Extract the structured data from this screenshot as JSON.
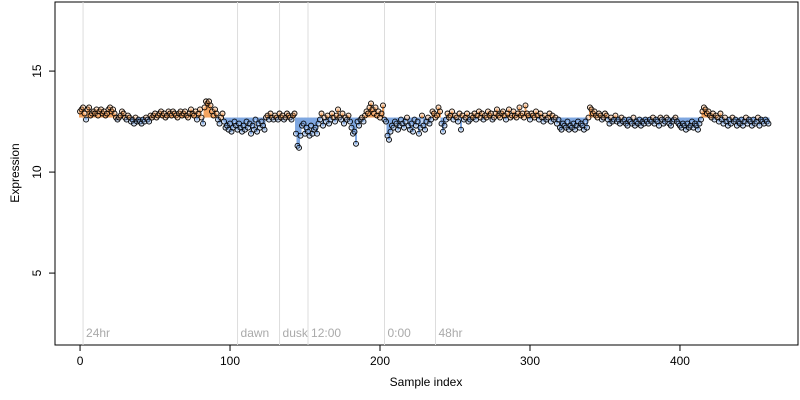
{
  "chart_data": {
    "type": "scatter",
    "x_label": "Sample index",
    "y_label": "Expression",
    "xlim": [
      -16.7,
      478.7
    ],
    "ylim": [
      1.44,
      18.42
    ],
    "xticks": [
      0,
      100,
      200,
      300,
      400
    ],
    "yticks": [
      5,
      10,
      15
    ],
    "baseline": 12.7,
    "above_color": "#f4a460",
    "below_color": "#7fa7e0",
    "point_color": "#000000",
    "annotation_color": "#dddddd",
    "annotations": [
      {
        "x": 2,
        "label": "24hr"
      },
      {
        "x": 105,
        "label": "dawn"
      },
      {
        "x": 133,
        "label": "dusk"
      },
      {
        "x": 152,
        "label": "12:00"
      },
      {
        "x": 203,
        "label": "0:00"
      },
      {
        "x": 237,
        "label": "48hr"
      }
    ],
    "values": [
      13.0,
      13.1,
      13.2,
      12.9,
      12.6,
      13.1,
      13.2,
      12.8,
      12.9,
      13.0,
      12.9,
      13.1,
      12.8,
      13.0,
      13.1,
      12.9,
      13.0,
      12.8,
      12.9,
      13.1,
      13.2,
      13.0,
      13.1,
      12.9,
      12.7,
      12.6,
      12.7,
      12.8,
      13.0,
      12.9,
      12.7,
      12.6,
      12.8,
      12.7,
      12.5,
      12.6,
      12.4,
      12.7,
      12.5,
      12.6,
      12.5,
      12.4,
      12.6,
      12.5,
      12.7,
      12.6,
      12.5,
      12.8,
      12.7,
      12.8,
      12.9,
      12.7,
      12.8,
      12.9,
      13.0,
      12.8,
      12.9,
      12.7,
      12.8,
      13.0,
      12.9,
      12.8,
      13.0,
      12.9,
      12.8,
      12.7,
      12.9,
      13.0,
      12.8,
      12.9,
      13.0,
      12.8,
      12.7,
      12.9,
      13.1,
      12.9,
      12.8,
      13.0,
      12.6,
      12.9,
      13.1,
      12.7,
      12.4,
      13.2,
      13.5,
      13.4,
      13.5,
      13.3,
      13.0,
      12.8,
      13.1,
      12.9,
      12.6,
      12.4,
      12.7,
      12.9,
      12.5,
      12.2,
      12.3,
      12.1,
      12.4,
      12.0,
      12.2,
      12.5,
      12.3,
      12.1,
      12.4,
      12.2,
      12.0,
      12.3,
      12.1,
      12.5,
      12.2,
      12.4,
      11.9,
      12.3,
      12.1,
      12.6,
      12.0,
      12.4,
      12.2,
      12.5,
      12.3,
      12.1,
      12.7,
      12.8,
      12.6,
      12.9,
      12.7,
      12.6,
      12.8,
      12.7,
      12.6,
      12.9,
      12.7,
      12.8,
      12.6,
      12.7,
      12.9,
      12.8,
      12.7,
      12.6,
      12.8,
      12.9,
      11.9,
      11.3,
      11.2,
      11.8,
      12.3,
      12.4,
      11.9,
      12.2,
      12.0,
      11.8,
      12.3,
      11.9,
      12.1,
      12.2,
      11.9,
      12.4,
      12.6,
      12.9,
      12.3,
      12.7,
      12.5,
      12.8,
      12.4,
      12.6,
      12.9,
      12.7,
      12.5,
      12.8,
      13.1,
      12.7,
      12.6,
      12.9,
      12.4,
      12.7,
      12.6,
      12.8,
      12.5,
      12.2,
      11.9,
      12.0,
      11.4,
      12.5,
      12.3,
      12.6,
      12.7,
      12.5,
      12.8,
      13.0,
      12.9,
      13.2,
      13.4,
      13.1,
      12.9,
      13.2,
      12.8,
      13.0,
      12.7,
      12.9,
      13.3,
      12.6,
      12.5,
      11.8,
      11.6,
      12.0,
      12.3,
      12.2,
      12.5,
      12.4,
      12.1,
      12.3,
      12.6,
      12.4,
      12.2,
      12.5,
      12.7,
      12.3,
      12.1,
      12.4,
      12.0,
      12.6,
      12.3,
      12.5,
      11.9,
      12.2,
      12.8,
      12.3,
      12.1,
      12.5,
      12.7,
      12.4,
      12.6,
      13.0,
      12.9,
      12.7,
      12.8,
      13.2,
      13.0,
      12.4,
      12.0,
      12.3,
      12.6,
      12.9,
      12.7,
      12.8,
      13.0,
      12.6,
      12.8,
      12.7,
      12.5,
      12.9,
      12.1,
      12.8,
      12.6,
      12.7,
      12.9,
      12.5,
      12.6,
      12.8,
      12.7,
      12.9,
      12.6,
      12.8,
      13.0,
      12.7,
      12.9,
      12.6,
      12.8,
      12.7,
      13.0,
      12.8,
      12.9,
      12.6,
      12.7,
      12.9,
      13.1,
      12.8,
      12.7,
      12.9,
      13.0,
      12.8,
      12.6,
      12.9,
      13.1,
      12.7,
      12.8,
      13.0,
      12.8,
      12.7,
      12.9,
      13.2,
      12.8,
      12.9,
      12.7,
      13.3,
      12.9,
      12.8,
      12.6,
      12.9,
      12.8,
      12.7,
      13.0,
      12.8,
      12.6,
      12.9,
      12.7,
      12.5,
      12.8,
      12.6,
      12.7,
      12.9,
      12.5,
      12.8,
      12.6,
      12.7,
      12.4,
      12.6,
      12.2,
      12.1,
      12.4,
      12.3,
      12.2,
      12.5,
      12.1,
      12.3,
      12.2,
      12.4,
      12.1,
      12.3,
      12.5,
      12.2,
      12.4,
      12.3,
      12.1,
      12.5,
      12.2,
      12.7,
      13.2,
      13.1,
      12.9,
      13.0,
      12.8,
      12.7,
      12.9,
      12.8,
      12.6,
      12.7,
      12.9,
      12.8,
      12.6,
      12.4,
      12.7,
      12.5,
      12.6,
      12.8,
      12.5,
      12.6,
      12.4,
      12.7,
      12.5,
      12.6,
      12.4,
      12.3,
      12.6,
      12.5,
      12.4,
      12.7,
      12.3,
      12.5,
      12.4,
      12.6,
      12.3,
      12.5,
      12.4,
      12.6,
      12.5,
      12.4,
      12.6,
      12.5,
      12.7,
      12.4,
      12.6,
      12.5,
      12.3,
      12.7,
      12.6,
      12.4,
      12.5,
      12.7,
      12.6,
      12.4,
      12.3,
      12.5,
      12.6,
      12.7,
      12.5,
      12.4,
      12.3,
      12.2,
      12.4,
      12.3,
      12.1,
      12.4,
      12.2,
      12.3,
      12.5,
      12.2,
      12.4,
      12.3,
      12.1,
      12.4,
      12.6,
      13.0,
      13.2,
      13.1,
      12.9,
      13.0,
      12.8,
      12.7,
      12.9,
      12.6,
      12.8,
      12.7,
      12.5,
      12.9,
      12.6,
      12.4,
      12.7,
      12.5,
      12.3,
      12.6,
      12.4,
      12.7,
      12.5,
      12.6,
      12.3,
      12.5,
      12.4,
      12.6,
      12.3,
      12.5,
      12.7,
      12.4,
      12.6,
      12.5,
      12.3,
      12.6,
      12.4,
      12.5,
      12.7,
      12.3,
      12.6,
      12.5,
      12.4,
      12.6,
      12.5,
      12.4
    ]
  }
}
